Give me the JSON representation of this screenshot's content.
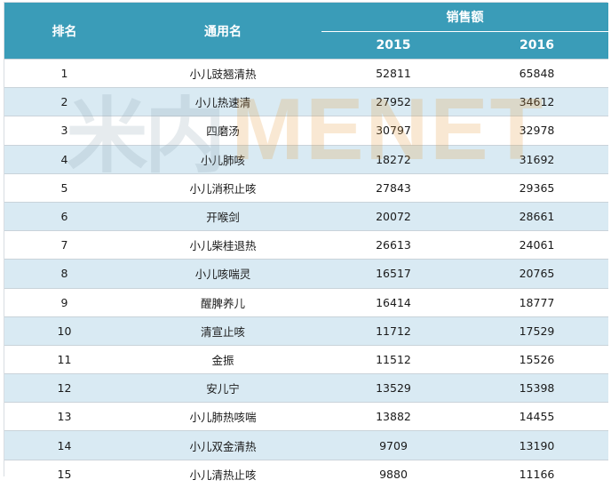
{
  "headers": {
    "rank": "排名",
    "name": "通用名",
    "sales": "销售额",
    "year1": "2015",
    "year2": "2016"
  },
  "rows": [
    {
      "rank": "1",
      "name": "小儿豉翘清热",
      "y2015": "52811",
      "y2016": "65848"
    },
    {
      "rank": "2",
      "name": "小儿热速清",
      "y2015": "27952",
      "y2016": "34612"
    },
    {
      "rank": "3",
      "name": "四磨汤",
      "y2015": "30797",
      "y2016": "32978"
    },
    {
      "rank": "4",
      "name": "小儿肺咳",
      "y2015": "18272",
      "y2016": "31692"
    },
    {
      "rank": "5",
      "name": "小儿消积止咳",
      "y2015": "27843",
      "y2016": "29365"
    },
    {
      "rank": "6",
      "name": "开喉剑",
      "y2015": "20072",
      "y2016": "28661"
    },
    {
      "rank": "7",
      "name": "小儿柴桂退热",
      "y2015": "26613",
      "y2016": "24061"
    },
    {
      "rank": "8",
      "name": "小儿咳喘灵",
      "y2015": "16517",
      "y2016": "20765"
    },
    {
      "rank": "9",
      "name": "醒脾养儿",
      "y2015": "16414",
      "y2016": "18777"
    },
    {
      "rank": "10",
      "name": "清宣止咳",
      "y2015": "11712",
      "y2016": "17529"
    },
    {
      "rank": "11",
      "name": "金振",
      "y2015": "11512",
      "y2016": "15526"
    },
    {
      "rank": "12",
      "name": "安儿宁",
      "y2015": "13529",
      "y2016": "15398"
    },
    {
      "rank": "13",
      "name": "小儿肺热咳喘",
      "y2015": "13882",
      "y2016": "14455"
    },
    {
      "rank": "14",
      "name": "小儿双金清热",
      "y2015": "9709",
      "y2016": "13190"
    },
    {
      "rank": "15",
      "name": "小儿清热止咳",
      "y2015": "9880",
      "y2016": "11166"
    }
  ],
  "watermark": {
    "mark": "米内",
    "text": "MENET"
  }
}
